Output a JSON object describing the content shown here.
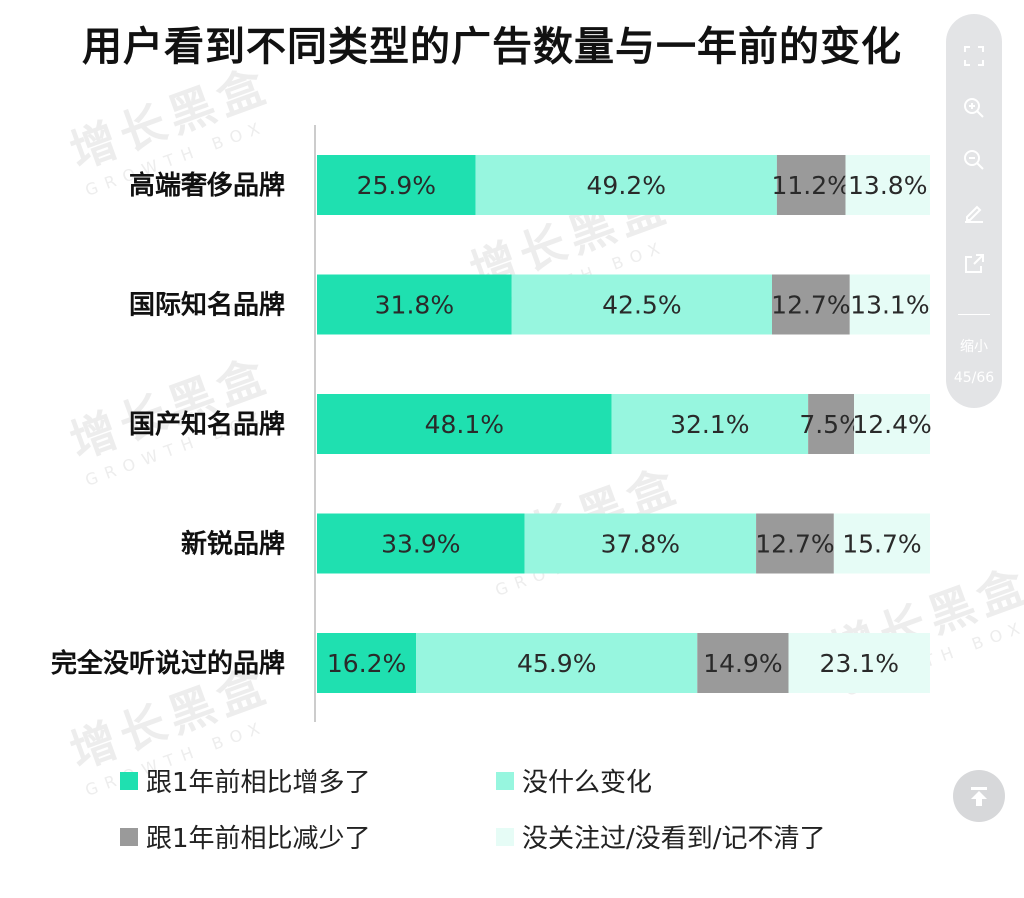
{
  "page": {
    "title": "用户看到不同类型的广告数量与一年前的变化"
  },
  "watermark": {
    "cn": "增长黑盒",
    "en": "GROWTH BOX"
  },
  "colors": {
    "more": "#1fe0b0",
    "no_change": "#97f6df",
    "less": "#9a9a9a",
    "not_noticed": "#e6fcf6",
    "axis": "#cccccc",
    "label_text": "#2a2a2a"
  },
  "chart_data": {
    "type": "bar",
    "orientation": "horizontal",
    "stacked": true,
    "percent": true,
    "title": "用户看到不同类型的广告数量与一年前的变化",
    "categories": [
      "高端奢侈品牌",
      "国际知名品牌",
      "国产知名品牌",
      "新锐品牌",
      "完全没听说过的品牌"
    ],
    "series": [
      {
        "name": "跟1年前相比增多了",
        "values": [
          25.9,
          31.8,
          48.1,
          33.9,
          16.2
        ],
        "labels": [
          "25.9%",
          "31.8%",
          "48.1%",
          "33.9%",
          "16.2%"
        ]
      },
      {
        "name": "没什么变化",
        "values": [
          49.2,
          42.5,
          32.1,
          37.8,
          45.9
        ],
        "labels": [
          "49.2%",
          "42.5%",
          "32.1%",
          "37.8%",
          "45.9%"
        ]
      },
      {
        "name": "跟1年前相比减少了",
        "values": [
          11.2,
          12.7,
          7.5,
          12.7,
          14.9
        ],
        "labels": [
          "11.2%",
          "12.7%",
          "7.5%",
          "12.7%",
          "14.9%"
        ]
      },
      {
        "name": "没关注过/没看到/记不清了",
        "values": [
          13.8,
          13.1,
          12.4,
          15.7,
          23.1
        ],
        "labels": [
          "13.8%",
          "13.1%",
          "12.4%",
          "15.7%",
          "23.1%"
        ]
      }
    ],
    "grid": false,
    "legend": "bottom"
  },
  "legend": {
    "items": [
      "跟1年前相比增多了",
      "没什么变化",
      "跟1年前相比减少了",
      "没关注过/没看到/记不清了"
    ]
  },
  "toolbar": {
    "zoom_out_label": "缩小",
    "page_indicator": "45/66",
    "icons": [
      "fullscreen-icon",
      "zoom-in-icon",
      "zoom-out-icon",
      "edit-icon",
      "share-icon"
    ]
  },
  "scroll_top": {
    "icon": "arrow-up-to-top-icon"
  }
}
